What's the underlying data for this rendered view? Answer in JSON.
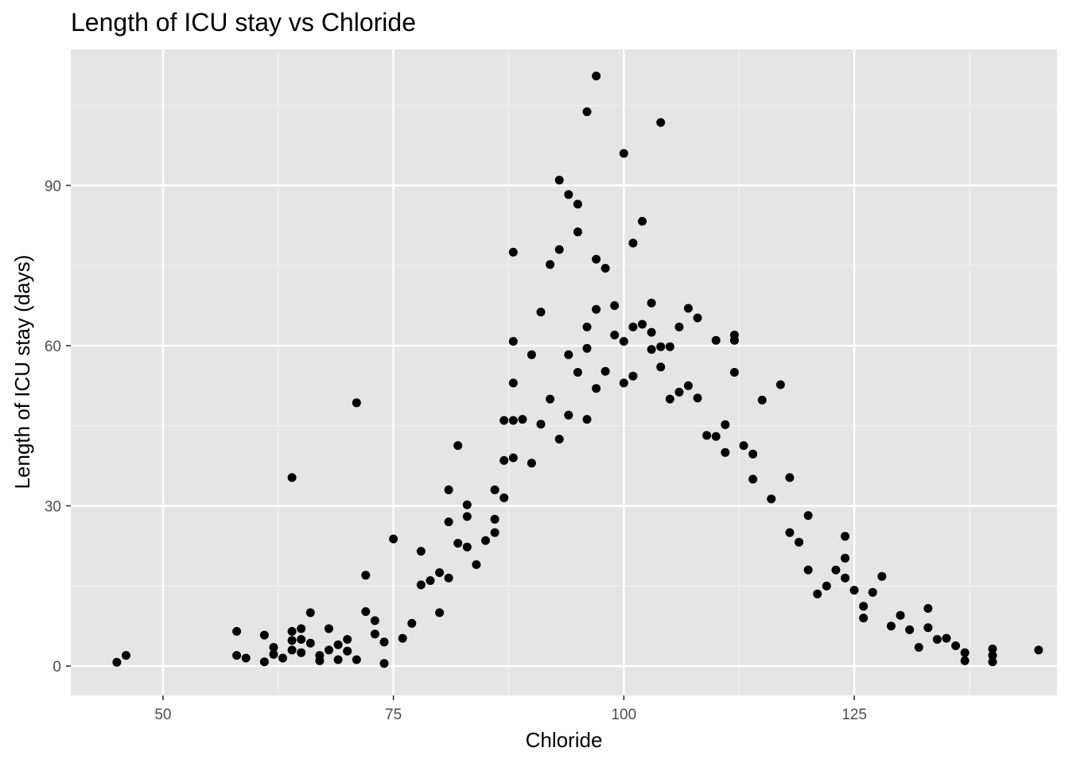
{
  "chart_data": {
    "type": "scatter",
    "title": "Length of ICU stay vs Chloride",
    "xlabel": "Chloride",
    "ylabel": "Length of ICU stay (days)",
    "xlim": [
      40,
      147
    ],
    "ylim": [
      -5.5,
      115.5
    ],
    "x_ticks": [
      50,
      75,
      100,
      125
    ],
    "y_ticks": [
      0,
      30,
      60,
      90
    ],
    "x_minor": [
      62.5,
      87.5,
      112.5,
      137.5
    ],
    "y_minor": [
      15,
      45,
      75,
      105
    ],
    "grid": true,
    "panel_color": "#e5e5e5",
    "point_color": "#000000",
    "x_tick_labels": [
      "50",
      "75",
      "100",
      "125"
    ],
    "y_tick_labels": [
      "0",
      "30",
      "60",
      "90"
    ],
    "points": [
      [
        45,
        0.7
      ],
      [
        46,
        2
      ],
      [
        58,
        6.5
      ],
      [
        58,
        2
      ],
      [
        59,
        1.5
      ],
      [
        61,
        0.8
      ],
      [
        61,
        5.8
      ],
      [
        62,
        3.5
      ],
      [
        62,
        2.2
      ],
      [
        63,
        1.5
      ],
      [
        64,
        6.5
      ],
      [
        64,
        4.8
      ],
      [
        64,
        3
      ],
      [
        64,
        35.3
      ],
      [
        65,
        2.5
      ],
      [
        65,
        7
      ],
      [
        65,
        5
      ],
      [
        66,
        10
      ],
      [
        66,
        4.3
      ],
      [
        67,
        2
      ],
      [
        67,
        1
      ],
      [
        68,
        7
      ],
      [
        68,
        3
      ],
      [
        69,
        1.2
      ],
      [
        69,
        4
      ],
      [
        70,
        5
      ],
      [
        70,
        2.8
      ],
      [
        71,
        1.2
      ],
      [
        71,
        49.3
      ],
      [
        72,
        10.2
      ],
      [
        72,
        17
      ],
      [
        73,
        8.5
      ],
      [
        73,
        6
      ],
      [
        74,
        4.5
      ],
      [
        74,
        0.5
      ],
      [
        75,
        23.8
      ],
      [
        76,
        5.2
      ],
      [
        77,
        8
      ],
      [
        78,
        21.5
      ],
      [
        78,
        15.2
      ],
      [
        79,
        16
      ],
      [
        80,
        17.5
      ],
      [
        80,
        10
      ],
      [
        81,
        33
      ],
      [
        81,
        27
      ],
      [
        81,
        16.5
      ],
      [
        82,
        41.3
      ],
      [
        82,
        23
      ],
      [
        83,
        30.2
      ],
      [
        83,
        28
      ],
      [
        83,
        22.3
      ],
      [
        84,
        19
      ],
      [
        85,
        23.5
      ],
      [
        86,
        33
      ],
      [
        86,
        27.5
      ],
      [
        86,
        25
      ],
      [
        87,
        46
      ],
      [
        87,
        38.5
      ],
      [
        87,
        31.5
      ],
      [
        88,
        77.5
      ],
      [
        88,
        60.8
      ],
      [
        88,
        53
      ],
      [
        88,
        46
      ],
      [
        88,
        39
      ],
      [
        89,
        46.2
      ],
      [
        90,
        58.3
      ],
      [
        90,
        38
      ],
      [
        91,
        66.3
      ],
      [
        91,
        45.3
      ],
      [
        92,
        75.2
      ],
      [
        92,
        50
      ],
      [
        93,
        91
      ],
      [
        93,
        78
      ],
      [
        93,
        42.5
      ],
      [
        94,
        88.3
      ],
      [
        94,
        58.3
      ],
      [
        94,
        47
      ],
      [
        95,
        86.5
      ],
      [
        95,
        81.3
      ],
      [
        95,
        55
      ],
      [
        96,
        103.8
      ],
      [
        96,
        63.5
      ],
      [
        96,
        59.5
      ],
      [
        96,
        46.2
      ],
      [
        97,
        110.5
      ],
      [
        97,
        76.2
      ],
      [
        97,
        66.8
      ],
      [
        97,
        52
      ],
      [
        98,
        74.5
      ],
      [
        98,
        55.2
      ],
      [
        99,
        67.5
      ],
      [
        99,
        62
      ],
      [
        100,
        96
      ],
      [
        100,
        60.8
      ],
      [
        100,
        53
      ],
      [
        101,
        79.2
      ],
      [
        101,
        63.5
      ],
      [
        101,
        54.3
      ],
      [
        102,
        83.3
      ],
      [
        102,
        64
      ],
      [
        103,
        68
      ],
      [
        103,
        62.5
      ],
      [
        103,
        59.3
      ],
      [
        104,
        101.8
      ],
      [
        104,
        59.8
      ],
      [
        104,
        56
      ],
      [
        105,
        59.8
      ],
      [
        105,
        50
      ],
      [
        106,
        63.5
      ],
      [
        106,
        51.3
      ],
      [
        107,
        67
      ],
      [
        107,
        52.5
      ],
      [
        108,
        65.2
      ],
      [
        108,
        50.2
      ],
      [
        109,
        43.2
      ],
      [
        110,
        61
      ],
      [
        110,
        43
      ],
      [
        111,
        45.2
      ],
      [
        111,
        40
      ],
      [
        112,
        62
      ],
      [
        112,
        61
      ],
      [
        112,
        55
      ],
      [
        113,
        41.3
      ],
      [
        114,
        39.7
      ],
      [
        114,
        35
      ],
      [
        115,
        49.8
      ],
      [
        116,
        31.3
      ],
      [
        117,
        52.7
      ],
      [
        118,
        35.3
      ],
      [
        118,
        25
      ],
      [
        119,
        23.2
      ],
      [
        120,
        28.2
      ],
      [
        120,
        18
      ],
      [
        121,
        13.5
      ],
      [
        122,
        15
      ],
      [
        123,
        18
      ],
      [
        124,
        24.3
      ],
      [
        124,
        20.2
      ],
      [
        124,
        16.5
      ],
      [
        125,
        14.2
      ],
      [
        126,
        11.2
      ],
      [
        126,
        9
      ],
      [
        127,
        13.8
      ],
      [
        128,
        16.8
      ],
      [
        129,
        7.5
      ],
      [
        130,
        9.5
      ],
      [
        131,
        6.8
      ],
      [
        132,
        3.5
      ],
      [
        133,
        10.8
      ],
      [
        133,
        7.2
      ],
      [
        134,
        5
      ],
      [
        135,
        5.2
      ],
      [
        136,
        3.8
      ],
      [
        137,
        2.5
      ],
      [
        137,
        1
      ],
      [
        140,
        3.2
      ],
      [
        140,
        2
      ],
      [
        140,
        0.8
      ],
      [
        145,
        3
      ]
    ]
  }
}
